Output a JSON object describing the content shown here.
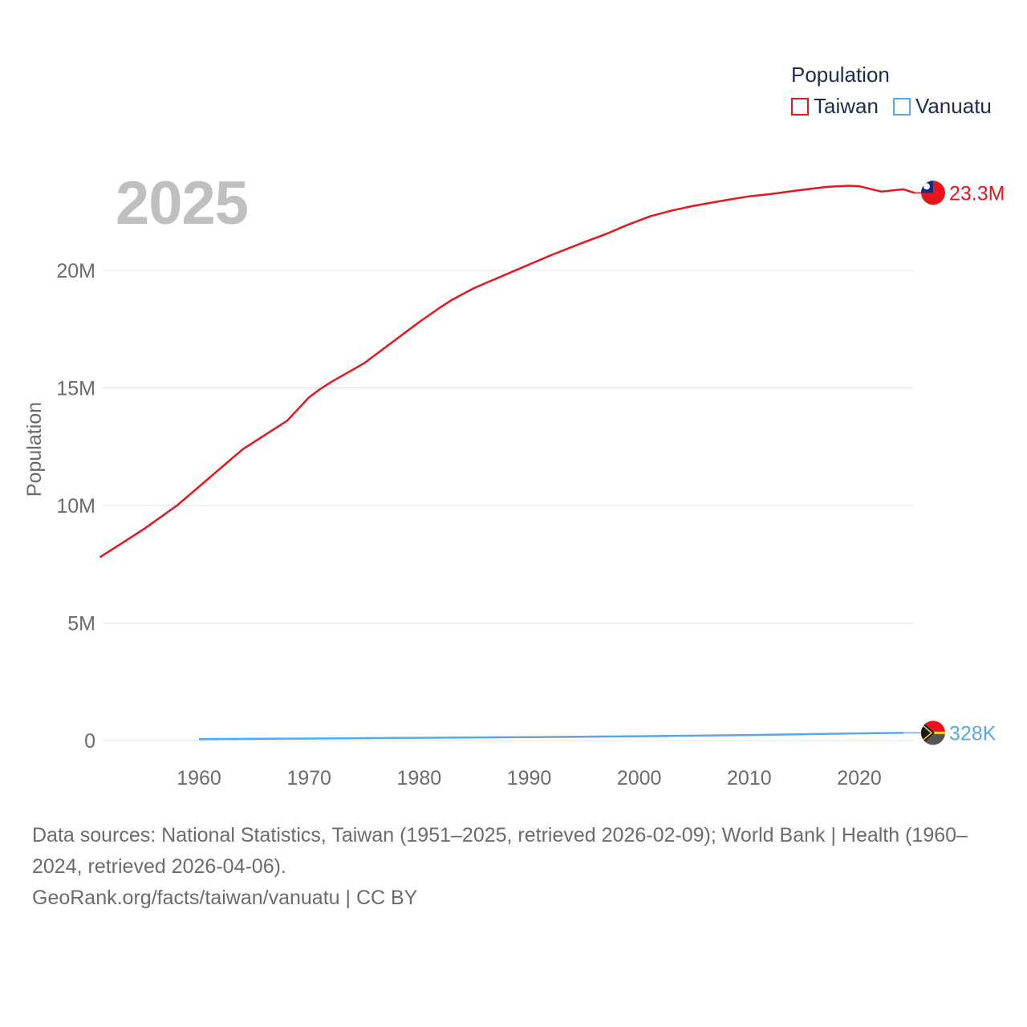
{
  "legend": {
    "title": "Population",
    "items": [
      {
        "label": "Taiwan",
        "color": "#e8161b"
      },
      {
        "label": "Vanuatu",
        "color": "#5aa6e8"
      }
    ]
  },
  "year_label": "2025",
  "footer": {
    "sources": "Data sources: National Statistics, Taiwan (1951–2025, retrieved 2026-02-09); World Bank | Health (1960–2024, retrieved 2026-04-06).",
    "credit": "GeoRank.org/facts/taiwan/vanuatu | CC BY"
  },
  "chart_data": {
    "type": "line",
    "title": "",
    "xlabel": "",
    "ylabel": "Population",
    "xlim": [
      1951,
      2025
    ],
    "ylim": [
      0,
      25000000
    ],
    "x_ticks": [
      1960,
      1970,
      1980,
      1990,
      2000,
      2010,
      2020
    ],
    "x_tick_labels": [
      "1960",
      "1970",
      "1980",
      "1990",
      "2000",
      "2010",
      "2020"
    ],
    "y_ticks": [
      0,
      5000000,
      10000000,
      15000000,
      20000000
    ],
    "y_tick_labels": [
      "0",
      "5M",
      "10M",
      "15M",
      "20M"
    ],
    "grid": true,
    "legend_position": "top-right",
    "series": [
      {
        "name": "Taiwan",
        "color": "#e8161b",
        "end_label": "23.3M",
        "x": [
          1951,
          1953,
          1955,
          1958,
          1960,
          1962,
          1964,
          1966,
          1968,
          1970,
          1971,
          1972,
          1975,
          1978,
          1980,
          1982,
          1983,
          1985,
          1988,
          1990,
          1992,
          1995,
          1997,
          1999,
          2001,
          2003,
          2005,
          2008,
          2010,
          2012,
          2014,
          2017,
          2019,
          2020,
          2022,
          2023,
          2024,
          2025
        ],
        "values": [
          7800000,
          8400000,
          9000000,
          10000000,
          10800000,
          11600000,
          12400000,
          13000000,
          13600000,
          14600000,
          14950000,
          15250000,
          16050000,
          17100000,
          17800000,
          18450000,
          18750000,
          19250000,
          19850000,
          20250000,
          20650000,
          21200000,
          21550000,
          21950000,
          22300000,
          22550000,
          22750000,
          23000000,
          23150000,
          23250000,
          23380000,
          23550000,
          23600000,
          23580000,
          23350000,
          23400000,
          23450000,
          23300000
        ]
      },
      {
        "name": "Vanuatu",
        "color": "#5aa6e8",
        "end_label": "328K",
        "x": [
          1960,
          1970,
          1980,
          1990,
          2000,
          2010,
          2020,
          2024
        ],
        "values": [
          63000,
          85000,
          116000,
          147000,
          185000,
          237000,
          307000,
          328000
        ]
      }
    ]
  }
}
